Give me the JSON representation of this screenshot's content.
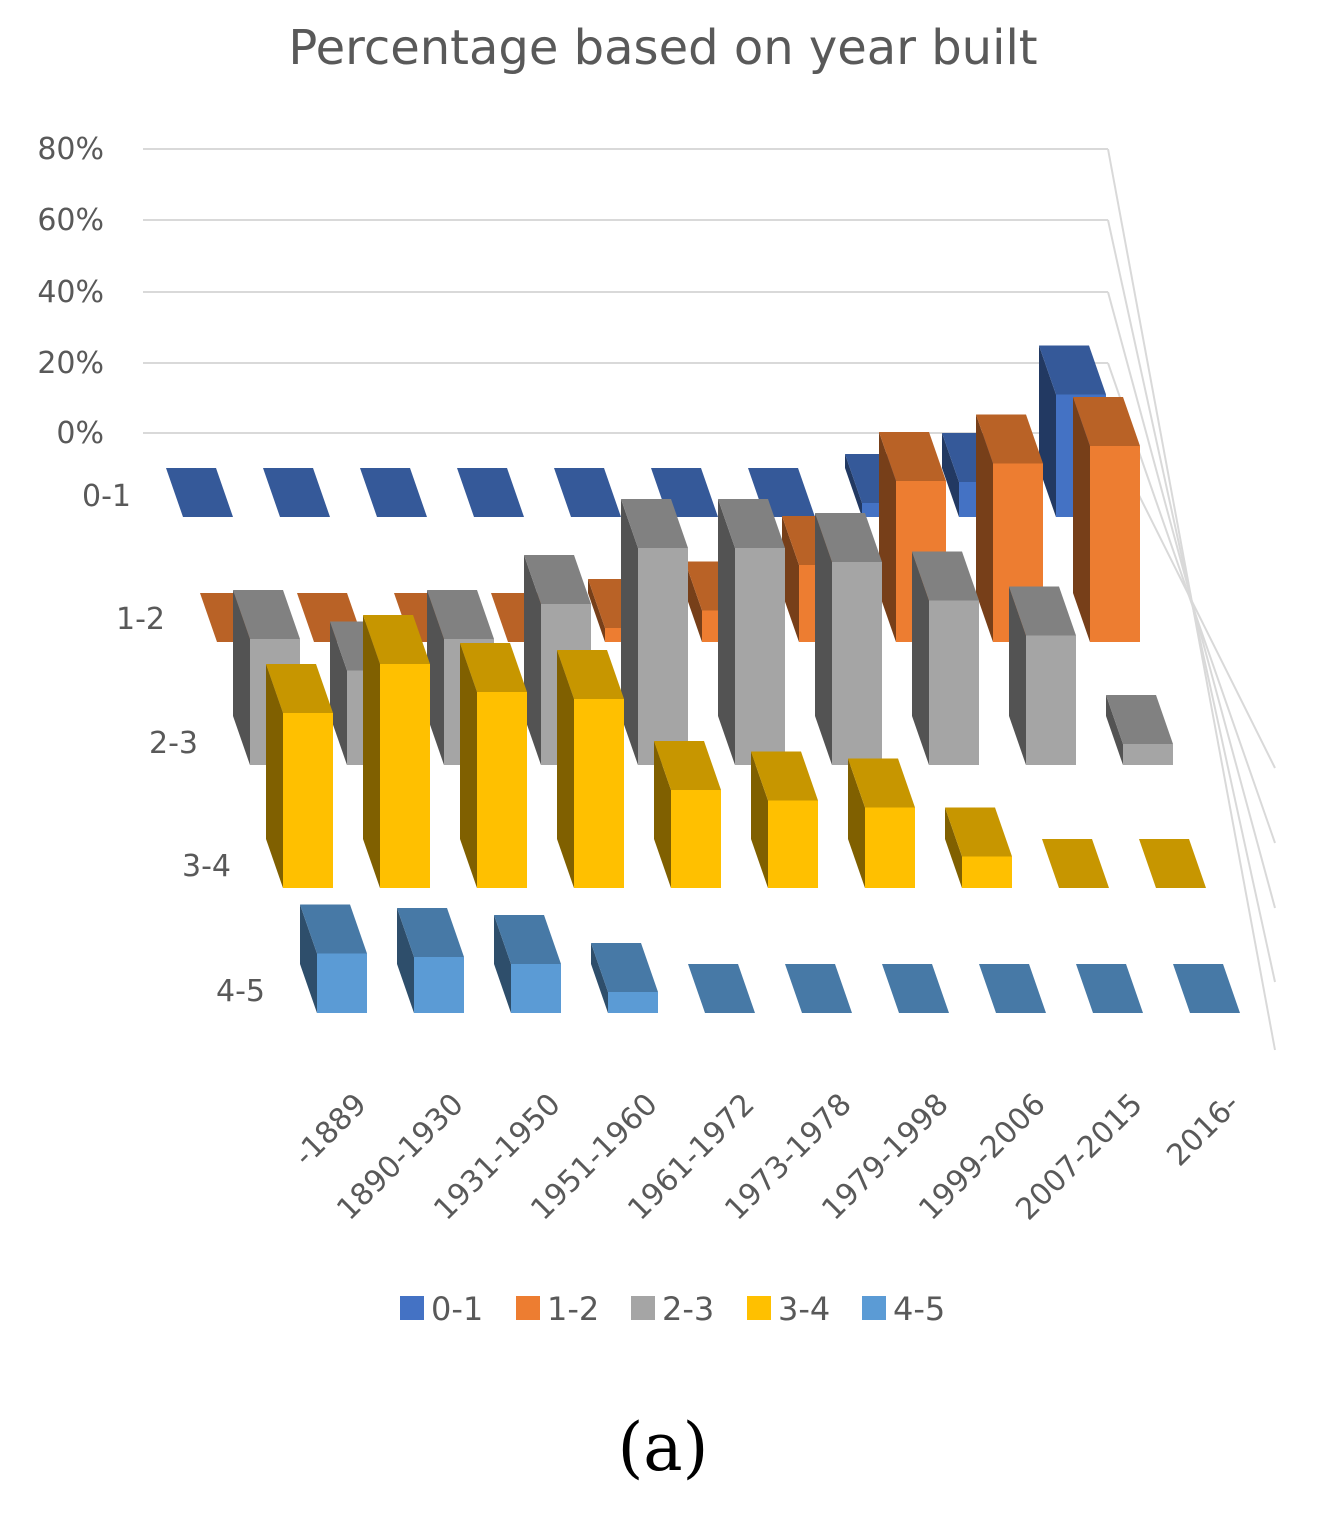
{
  "chart_data": {
    "type": "bar",
    "subtype": "3d-column",
    "title": "Percentage based on year built",
    "categories": [
      "-1889",
      "1890-1930",
      "1931-1950",
      "1951-1960",
      "1961-1972",
      "1973-1978",
      "1979-1998",
      "1999-2006",
      "2007-2015",
      "2016-"
    ],
    "y_ticks": [
      "0%",
      "20%",
      "40%",
      "60%",
      "80%"
    ],
    "ylim": [
      0,
      80
    ],
    "grid": true,
    "legend_position": "bottom",
    "series": [
      {
        "name": "0-1",
        "color": "#4472C4",
        "values": [
          0,
          0,
          0,
          0,
          0,
          0,
          0,
          4,
          10,
          35
        ]
      },
      {
        "name": "1-2",
        "color": "#ED7D31",
        "values": [
          0,
          0,
          0,
          0,
          4,
          9,
          22,
          46,
          51,
          56
        ]
      },
      {
        "name": "2-3",
        "color": "#A5A5A5",
        "values": [
          36,
          27,
          36,
          46,
          62,
          62,
          58,
          47,
          37,
          6
        ]
      },
      {
        "name": "3-4",
        "color": "#FFC000",
        "values": [
          50,
          64,
          56,
          54,
          28,
          25,
          23,
          9,
          0,
          0
        ]
      },
      {
        "name": "4-5",
        "color": "#5B9BD5",
        "values": [
          17,
          16,
          14,
          6,
          0,
          0,
          0,
          0,
          0,
          0
        ]
      }
    ],
    "caption": "(a)"
  }
}
